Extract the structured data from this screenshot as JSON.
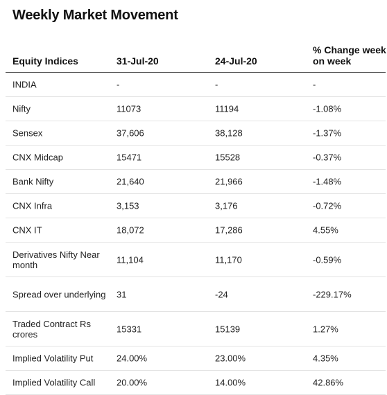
{
  "title": "Weekly Market Movement",
  "headers": [
    "Equity Indices",
    "31-Jul-20",
    "24-Jul-20",
    "% Change week on week"
  ],
  "rows": [
    [
      "INDIA",
      "-",
      "-",
      "-"
    ],
    [
      "Nifty",
      "11073",
      "11194",
      "-1.08%"
    ],
    [
      "Sensex",
      "37,606",
      "38,128",
      "-1.37%"
    ],
    [
      "CNX Midcap",
      "15471",
      "15528",
      "-0.37%"
    ],
    [
      "Bank Nifty",
      "21,640",
      "21,966",
      "-1.48%"
    ],
    [
      "CNX Infra",
      "3,153",
      "3,176",
      "-0.72%"
    ],
    [
      "CNX IT",
      "18,072",
      "17,286",
      "4.55%"
    ],
    [
      "Derivatives Nifty Near month",
      "11,104",
      "11,170",
      "-0.59%"
    ],
    [
      "Spread over underlying",
      "31",
      "-24",
      "-229.17%"
    ],
    [
      "Traded Contract Rs crores",
      "15331",
      "15139",
      "1.27%"
    ],
    [
      "Implied Volatility Put",
      "24.00%",
      "23.00%",
      "4.35%"
    ],
    [
      "Implied Volatility Call",
      "20.00%",
      "14.00%",
      "42.86%"
    ]
  ]
}
